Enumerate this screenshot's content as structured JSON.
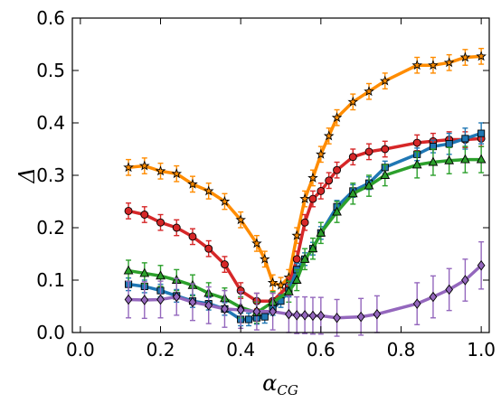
{
  "chart_data": {
    "type": "line",
    "xlabel": "α",
    "xlabel_sub": "CG",
    "ylabel": "Δ",
    "xlim": [
      -0.02,
      1.02
    ],
    "ylim": [
      0.0,
      0.6
    ],
    "xticks": [
      "0.0",
      "0.2",
      "0.4",
      "0.6",
      "0.8",
      "1.0"
    ],
    "yticks": [
      "0.0",
      "0.1",
      "0.2",
      "0.3",
      "0.4",
      "0.5",
      "0.6"
    ],
    "grid": false,
    "series": [
      {
        "color": "#ff8c00",
        "marker": "star",
        "x": [
          0.12,
          0.16,
          0.2,
          0.24,
          0.28,
          0.32,
          0.36,
          0.4,
          0.44,
          0.46,
          0.48,
          0.5,
          0.52,
          0.54,
          0.56,
          0.58,
          0.6,
          0.62,
          0.64,
          0.68,
          0.72,
          0.76,
          0.84,
          0.88,
          0.92,
          0.96,
          1.0
        ],
        "y": [
          0.315,
          0.318,
          0.308,
          0.303,
          0.283,
          0.27,
          0.25,
          0.215,
          0.17,
          0.14,
          0.095,
          0.09,
          0.105,
          0.185,
          0.255,
          0.295,
          0.34,
          0.375,
          0.41,
          0.44,
          0.46,
          0.48,
          0.51,
          0.51,
          0.515,
          0.525,
          0.527
        ],
        "err": [
          0.015,
          0.015,
          0.015,
          0.015,
          0.015,
          0.015,
          0.015,
          0.015,
          0.015,
          0.015,
          0.015,
          0.015,
          0.015,
          0.015,
          0.015,
          0.015,
          0.015,
          0.015,
          0.015,
          0.015,
          0.015,
          0.015,
          0.015,
          0.015,
          0.015,
          0.015,
          0.015
        ]
      },
      {
        "color": "#d62728",
        "marker": "circle",
        "x": [
          0.12,
          0.16,
          0.2,
          0.24,
          0.28,
          0.32,
          0.36,
          0.4,
          0.44,
          0.48,
          0.52,
          0.54,
          0.56,
          0.58,
          0.6,
          0.62,
          0.64,
          0.68,
          0.72,
          0.76,
          0.84,
          0.88,
          0.92,
          0.96,
          1.0
        ],
        "y": [
          0.232,
          0.225,
          0.21,
          0.2,
          0.183,
          0.16,
          0.13,
          0.08,
          0.06,
          0.06,
          0.09,
          0.14,
          0.21,
          0.255,
          0.27,
          0.29,
          0.31,
          0.335,
          0.345,
          0.35,
          0.362,
          0.365,
          0.368,
          0.368,
          0.37
        ],
        "err": [
          0.015,
          0.015,
          0.015,
          0.015,
          0.015,
          0.015,
          0.015,
          0.015,
          0.015,
          0.015,
          0.015,
          0.015,
          0.015,
          0.015,
          0.015,
          0.015,
          0.015,
          0.015,
          0.015,
          0.015,
          0.015,
          0.015,
          0.015,
          0.015,
          0.015
        ]
      },
      {
        "color": "#1f77b4",
        "marker": "square",
        "x": [
          0.12,
          0.16,
          0.2,
          0.24,
          0.28,
          0.32,
          0.36,
          0.4,
          0.42,
          0.44,
          0.46,
          0.48,
          0.5,
          0.52,
          0.54,
          0.56,
          0.58,
          0.6,
          0.64,
          0.68,
          0.72,
          0.76,
          0.84,
          0.88,
          0.92,
          0.96,
          1.0
        ],
        "y": [
          0.092,
          0.088,
          0.08,
          0.07,
          0.06,
          0.055,
          0.045,
          0.025,
          0.025,
          0.028,
          0.03,
          0.045,
          0.06,
          0.08,
          0.12,
          0.14,
          0.16,
          0.19,
          0.24,
          0.27,
          0.285,
          0.315,
          0.34,
          0.355,
          0.36,
          0.37,
          0.38
        ],
        "err": [
          0.012,
          0.012,
          0.012,
          0.012,
          0.012,
          0.012,
          0.012,
          0.012,
          0.012,
          0.012,
          0.012,
          0.012,
          0.012,
          0.012,
          0.012,
          0.012,
          0.012,
          0.012,
          0.012,
          0.012,
          0.012,
          0.012,
          0.012,
          0.012,
          0.02,
          0.02,
          0.02
        ]
      },
      {
        "color": "#2ca02c",
        "marker": "triangle",
        "x": [
          0.12,
          0.16,
          0.2,
          0.24,
          0.28,
          0.32,
          0.36,
          0.4,
          0.44,
          0.48,
          0.52,
          0.54,
          0.56,
          0.58,
          0.6,
          0.64,
          0.68,
          0.72,
          0.76,
          0.84,
          0.88,
          0.92,
          0.96,
          1.0
        ],
        "y": [
          0.118,
          0.113,
          0.108,
          0.1,
          0.09,
          0.075,
          0.065,
          0.048,
          0.038,
          0.058,
          0.078,
          0.1,
          0.14,
          0.16,
          0.19,
          0.23,
          0.265,
          0.28,
          0.3,
          0.32,
          0.325,
          0.328,
          0.33,
          0.33
        ],
        "err": [
          0.02,
          0.02,
          0.02,
          0.02,
          0.02,
          0.02,
          0.02,
          0.02,
          0.02,
          0.02,
          0.02,
          0.02,
          0.02,
          0.02,
          0.02,
          0.02,
          0.02,
          0.02,
          0.02,
          0.025,
          0.025,
          0.025,
          0.025,
          0.025
        ]
      },
      {
        "color": "#9467bd",
        "marker": "diamond",
        "x": [
          0.12,
          0.16,
          0.2,
          0.24,
          0.28,
          0.32,
          0.36,
          0.4,
          0.44,
          0.48,
          0.52,
          0.54,
          0.56,
          0.58,
          0.6,
          0.64,
          0.7,
          0.74,
          0.84,
          0.88,
          0.92,
          0.96,
          1.0
        ],
        "y": [
          0.063,
          0.062,
          0.063,
          0.068,
          0.058,
          0.052,
          0.045,
          0.043,
          0.04,
          0.04,
          0.035,
          0.033,
          0.033,
          0.032,
          0.032,
          0.028,
          0.03,
          0.035,
          0.055,
          0.068,
          0.082,
          0.1,
          0.128
        ],
        "err": [
          0.035,
          0.035,
          0.035,
          0.035,
          0.035,
          0.035,
          0.035,
          0.035,
          0.035,
          0.035,
          0.035,
          0.035,
          0.035,
          0.035,
          0.035,
          0.035,
          0.035,
          0.035,
          0.04,
          0.04,
          0.04,
          0.04,
          0.045
        ]
      }
    ]
  }
}
